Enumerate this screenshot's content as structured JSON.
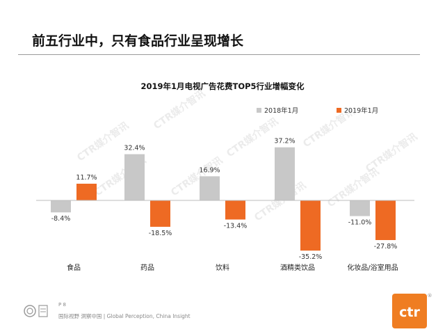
{
  "slide": {
    "title": "前五行业中，只有食品行业呈现增长",
    "page_number": "P 8",
    "footer_text": "国际视野 洞察中国 | Global Perception, China Insight",
    "logo_text": "ctr",
    "logo_mark": "®",
    "watermark": "CTR媒介智讯"
  },
  "colors": {
    "series_2018": "#c8c8c8",
    "series_2019": "#ee6a23",
    "logo": "#ef7d22"
  },
  "icons": {
    "badge": "certification-badge-icon",
    "logo": "ctr-logo"
  },
  "chart_data": {
    "type": "bar",
    "title": "2019年1月电视广告花费TOP5行业增幅变化",
    "categories": [
      "食品",
      "药品",
      "饮料",
      "酒精类饮品",
      "化妆品/浴室用品"
    ],
    "series": [
      {
        "name": "2018年1月",
        "values": [
          -8.4,
          32.4,
          16.9,
          37.2,
          -11.0
        ],
        "labels": [
          "-8.4%",
          "32.4%",
          "16.9%",
          "37.2%",
          "-11.0%"
        ]
      },
      {
        "name": "2019年1月",
        "values": [
          11.7,
          -18.5,
          -13.4,
          -35.2,
          -27.8
        ],
        "labels": [
          "11.7%",
          "-18.5%",
          "-13.4%",
          "-35.2%",
          "-27.8%"
        ]
      }
    ],
    "unit": "%",
    "legend": "top-right",
    "grid": false
  }
}
